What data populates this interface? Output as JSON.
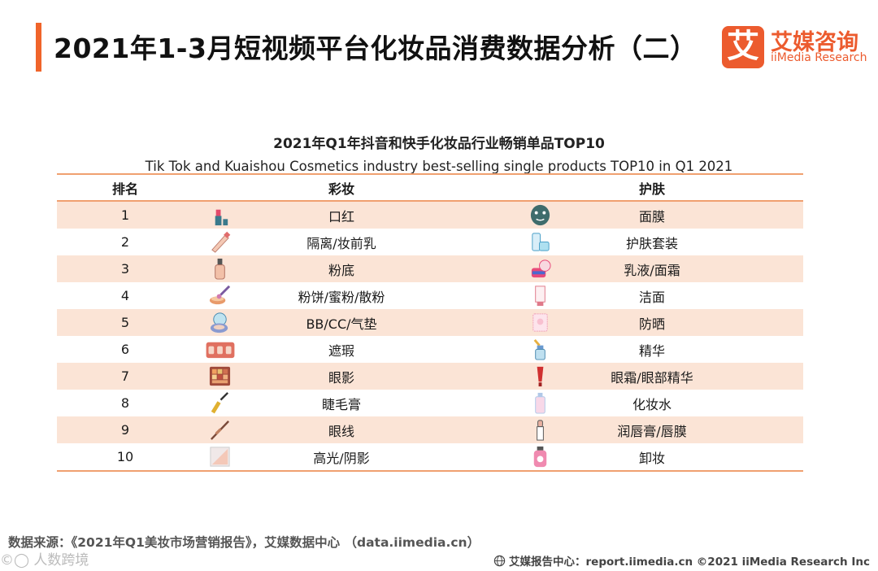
{
  "header": {
    "title": "2021年1-3月短视频平台化妆品消费数据分析（二）"
  },
  "logo": {
    "mark": "艾",
    "cn": "艾媒咨询",
    "en": "iiMedia Research"
  },
  "table": {
    "title_cn": "2021年Q1年抖音和快手化妆品行业畅销单品TOP10",
    "title_en": "Tik Tok and Kuaishou Cosmetics industry best-selling single products TOP10 in Q1 2021",
    "headers": {
      "rank": "排名",
      "makeup": "彩妆",
      "skincare": "护肤"
    },
    "rows": [
      {
        "rank": "1",
        "makeup": "口红",
        "skincare": "面膜",
        "makeup_icon": "lipstick-icon",
        "skincare_icon": "face-mask-icon"
      },
      {
        "rank": "2",
        "makeup": "隔离/妆前乳",
        "skincare": "护肤套装",
        "makeup_icon": "primer-tube-icon",
        "skincare_icon": "skincare-set-icon"
      },
      {
        "rank": "3",
        "makeup": "粉底",
        "skincare": "乳液/面霜",
        "makeup_icon": "foundation-bottle-icon",
        "skincare_icon": "cream-jar-icon"
      },
      {
        "rank": "4",
        "makeup": "粉饼/蜜粉/散粉",
        "skincare": "洁面",
        "makeup_icon": "powder-brush-icon",
        "skincare_icon": "cleanser-tube-icon"
      },
      {
        "rank": "5",
        "makeup": "BB/CC/气垫",
        "skincare": "防晒",
        "makeup_icon": "cushion-compact-icon",
        "skincare_icon": "sunscreen-icon"
      },
      {
        "rank": "6",
        "makeup": "遮瑕",
        "skincare": "精华",
        "makeup_icon": "concealer-palette-icon",
        "skincare_icon": "serum-dropper-icon"
      },
      {
        "rank": "7",
        "makeup": "眼影",
        "skincare": "眼霜/眼部精华",
        "makeup_icon": "eyeshadow-palette-icon",
        "skincare_icon": "eye-cream-tube-icon"
      },
      {
        "rank": "8",
        "makeup": "睫毛膏",
        "skincare": "化妆水",
        "makeup_icon": "mascara-icon",
        "skincare_icon": "toner-bottle-icon"
      },
      {
        "rank": "9",
        "makeup": "眼线",
        "skincare": "润唇膏/唇膜",
        "makeup_icon": "eyeliner-icon",
        "skincare_icon": "lip-balm-icon"
      },
      {
        "rank": "10",
        "makeup": "高光/阴影",
        "skincare": "卸妆",
        "makeup_icon": "highlighter-icon",
        "skincare_icon": "makeup-remover-icon"
      }
    ]
  },
  "footer": {
    "source": "数据来源：《2021年Q1美妆市场营销报告》，艾媒数据中心 （data.iimedia.cn）",
    "watermark": "©◯ 人数跨境",
    "right": "艾媒报告中心：report.iimedia.cn  ©2021  iiMedia Research  Inc"
  },
  "colors": {
    "accent": "#f0642a",
    "row_shade": "#fbe4d6",
    "rule": "#f0a070"
  }
}
